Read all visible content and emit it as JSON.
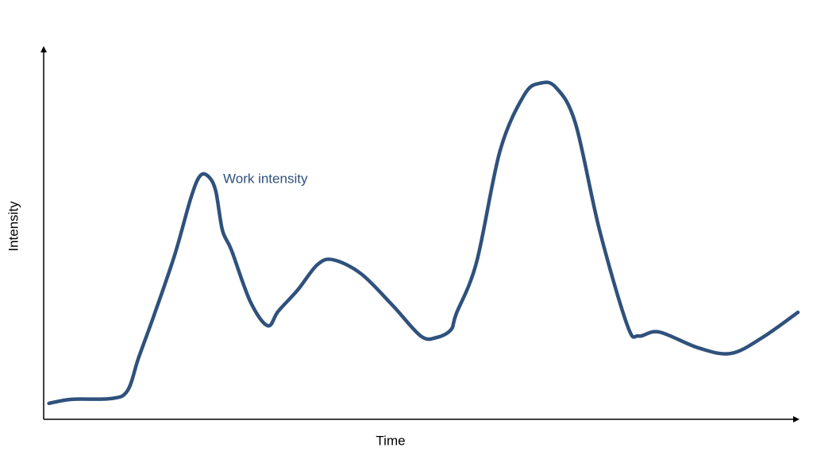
{
  "chart_data": {
    "type": "line",
    "x_label": "Time",
    "y_label": "Intensity",
    "x": [
      0.7,
      3.7,
      8.9,
      11.1,
      12.6,
      14.7,
      17.4,
      19.5,
      20.7,
      21.8,
      22.8,
      23.7,
      24.9,
      27.4,
      29.7,
      31.1,
      33.7,
      36.3,
      38.4,
      42.1,
      46.3,
      50.0,
      52.1,
      54.0,
      54.7,
      57.4,
      60.5,
      63.7,
      65.8,
      67.9,
      70.5,
      73.7,
      77.4,
      78.9,
      81.6,
      86.8,
      91.1,
      95.3,
      100
    ],
    "series": [
      {
        "name": "Work intensity",
        "color": "#2f517c",
        "values": [
          4.3,
          5.4,
          5.6,
          7.7,
          16.7,
          28.5,
          44.6,
          59.7,
          65.7,
          65.7,
          61.8,
          51.1,
          45.7,
          31.8,
          25.3,
          29.2,
          35.0,
          41.8,
          43.1,
          39.3,
          30.7,
          22.5,
          22.1,
          24.2,
          28.5,
          42.5,
          72.5,
          87.6,
          90.8,
          89.7,
          80.0,
          51.1,
          25.3,
          22.5,
          23.6,
          19.3,
          17.8,
          22.1,
          28.9
        ]
      }
    ],
    "xlim": [
      0,
      100
    ],
    "ylim": [
      0,
      100
    ]
  }
}
